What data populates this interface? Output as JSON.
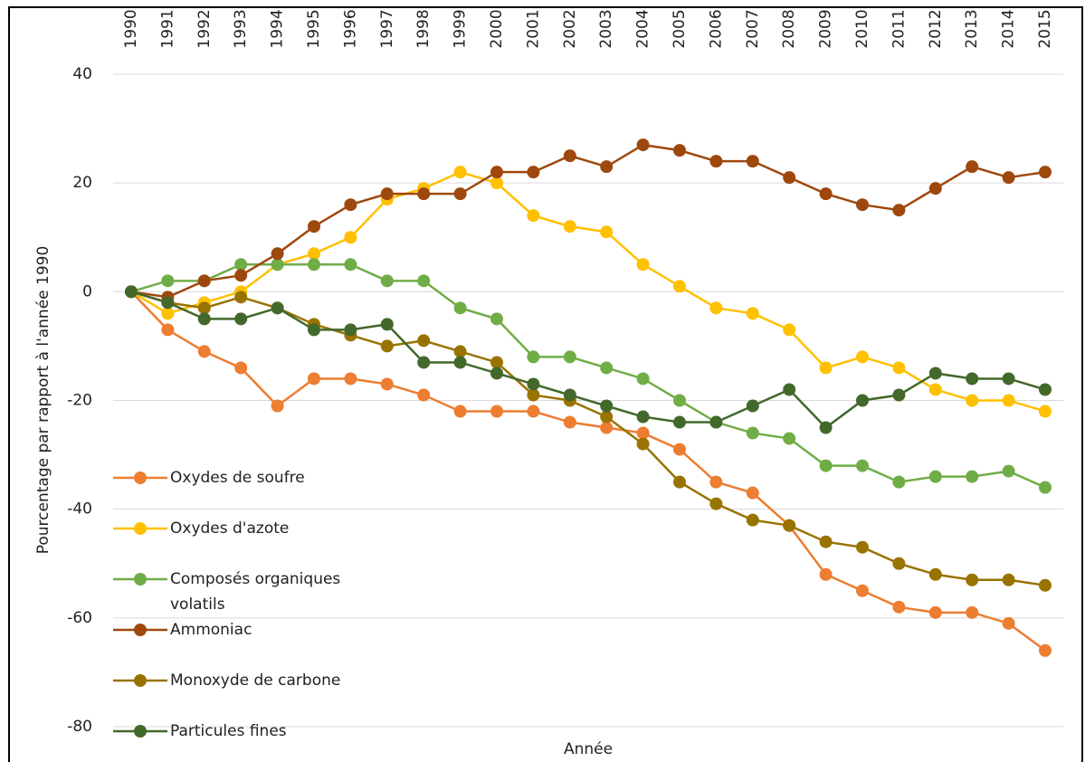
{
  "chart_data": {
    "type": "line",
    "y_label": "Pourcentage par rapport à l'année 1990",
    "x_label": "Année",
    "categories": [
      "1990",
      "1991",
      "1992",
      "1993",
      "1994",
      "1995",
      "1996",
      "1997",
      "1998",
      "1999",
      "2000",
      "2001",
      "2002",
      "2003",
      "2004",
      "2005",
      "2006",
      "2007",
      "2008",
      "2009",
      "2010",
      "2011",
      "2012",
      "2013",
      "2014",
      "2015"
    ],
    "ylim": [
      -80,
      40
    ],
    "yticks": [
      -80,
      -60,
      -40,
      -20,
      0,
      20,
      40
    ],
    "grid": true,
    "legend": "left",
    "series": [
      {
        "name": "Oxydes de soufre",
        "color": "#ED7D31",
        "values": [
          0,
          -7,
          -11,
          -14,
          -21,
          -16,
          -16,
          -17,
          -19,
          -22,
          -22,
          -22,
          -24,
          -25,
          -26,
          -29,
          -35,
          -37,
          -43,
          -52,
          -55,
          -58,
          -59,
          -59,
          -61,
          -66
        ]
      },
      {
        "name": "Oxydes d'azote",
        "color": "#FFC000",
        "values": [
          0,
          -4,
          -2,
          0,
          5,
          7,
          10,
          17,
          19,
          22,
          20,
          14,
          12,
          11,
          5,
          1,
          -3,
          -4,
          -7,
          -14,
          -12,
          -14,
          -18,
          -20,
          -20,
          -22
        ]
      },
      {
        "name": "Composés organiques volatils",
        "color": "#70AD47",
        "values": [
          0,
          2,
          2,
          5,
          5,
          5,
          5,
          2,
          2,
          -3,
          -5,
          -12,
          -12,
          -14,
          -16,
          -20,
          -24,
          -26,
          -27,
          -32,
          -32,
          -35,
          -34,
          -34,
          -33,
          -36
        ]
      },
      {
        "name": "Ammoniac",
        "color": "#9E480E",
        "values": [
          0,
          -1,
          2,
          3,
          7,
          12,
          16,
          18,
          18,
          18,
          22,
          22,
          25,
          23,
          27,
          26,
          24,
          24,
          21,
          18,
          16,
          15,
          19,
          23,
          21,
          22
        ]
      },
      {
        "name": "Monoxyde de carbone",
        "color": "#997300",
        "values": [
          0,
          -2,
          -3,
          -1,
          -3,
          -6,
          -8,
          -10,
          -9,
          -11,
          -13,
          -19,
          -20,
          -23,
          -28,
          -35,
          -39,
          -42,
          -43,
          -46,
          -47,
          -50,
          -52,
          -53,
          -53,
          -54
        ]
      },
      {
        "name": "Particules fines",
        "color": "#43682B",
        "values": [
          0,
          -2,
          -5,
          -5,
          -3,
          -7,
          -7,
          -6,
          -13,
          -13,
          -15,
          -17,
          -19,
          -21,
          -23,
          -24,
          -24,
          -21,
          -18,
          -25,
          -20,
          -19,
          -15,
          -16,
          -16,
          -18
        ]
      }
    ]
  }
}
